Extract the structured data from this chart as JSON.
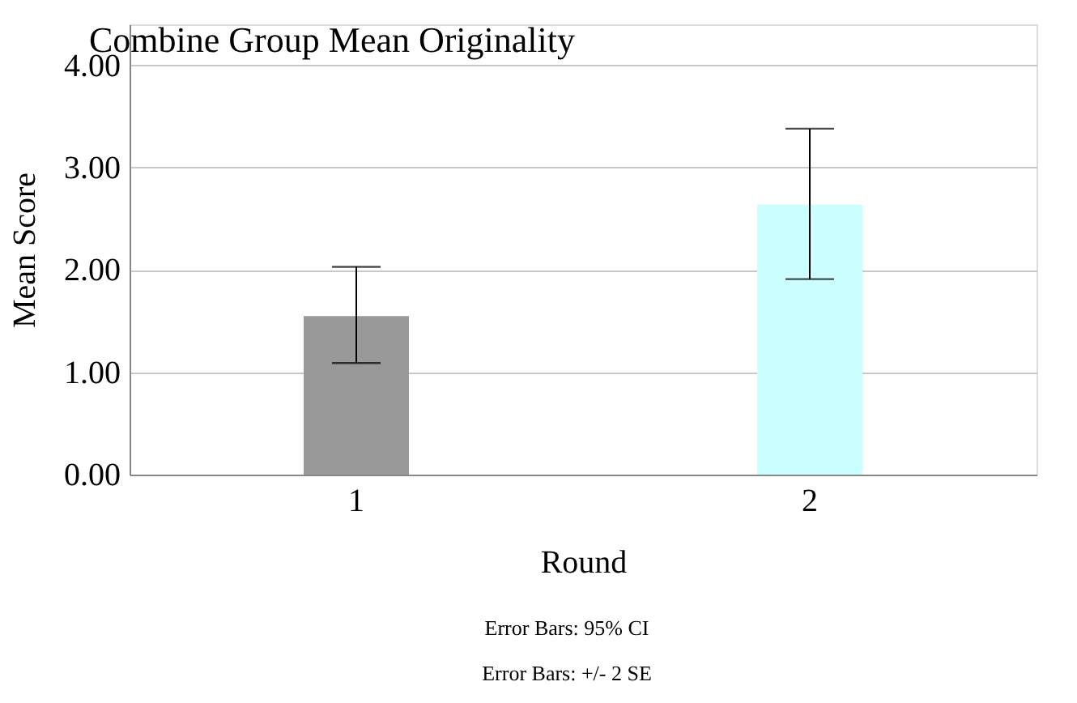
{
  "chart_data": {
    "type": "bar",
    "title": "Combine Group Mean Originality",
    "xlabel": "Round",
    "ylabel": "Mean Score",
    "categories": [
      "1",
      "2"
    ],
    "values": [
      1.55,
      2.64
    ],
    "colors": [
      "#999999",
      "#ccffff"
    ],
    "errors": [
      [
        1.09,
        2.03
      ],
      [
        1.91,
        3.38
      ]
    ],
    "ylim": [
      0,
      4.4
    ],
    "yticks": [
      {
        "value": 0,
        "label": "0.00"
      },
      {
        "value": 1,
        "label": "1.00"
      },
      {
        "value": 2,
        "label": "2.00"
      },
      {
        "value": 3,
        "label": "3.00"
      },
      {
        "value": 4,
        "label": "4.00"
      }
    ],
    "grid": "y",
    "annotations": [
      "Error Bars: 95% CI",
      "Error Bars: +/- 2 SE"
    ]
  }
}
